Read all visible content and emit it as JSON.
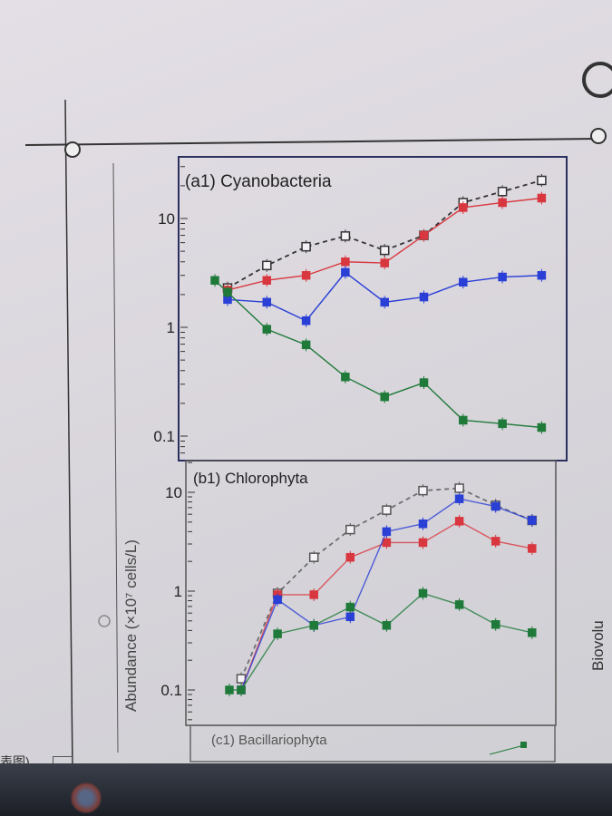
{
  "chart_data": [
    {
      "type": "line",
      "title": "(a1) Cyanobacteria",
      "yscale": "log",
      "ylim": [
        0.08,
        25
      ],
      "yticks": [
        {
          "value": 10,
          "label": "10"
        },
        {
          "value": 1,
          "label": "1"
        },
        {
          "value": 0.1,
          "label": "0.1"
        }
      ],
      "x": [
        0,
        1,
        2,
        3,
        4,
        5,
        6,
        7,
        8,
        9
      ],
      "series": [
        {
          "marker": "open-square",
          "line": "dashed",
          "color": "#333333",
          "values": [
            null,
            2.3,
            3.7,
            5.5,
            6.9,
            5.1,
            7.0,
            14,
            17.7,
            22.4
          ]
        },
        {
          "marker": "filled-square",
          "line": "solid",
          "color": "#d9373f",
          "values": [
            null,
            2.2,
            2.7,
            3.0,
            4.0,
            3.9,
            7.0,
            12.6,
            14,
            15.4
          ]
        },
        {
          "marker": "filled-square",
          "line": "solid",
          "color": "#2a3fd6",
          "values": [
            null,
            1.8,
            1.7,
            1.15,
            3.2,
            1.7,
            1.9,
            2.6,
            2.9,
            3.0
          ]
        },
        {
          "marker": "filled-square",
          "line": "solid",
          "color": "#1f7a3a",
          "values": [
            2.7,
            2.1,
            0.96,
            0.69,
            0.35,
            0.23,
            0.31,
            0.14,
            0.13,
            0.12
          ]
        }
      ]
    },
    {
      "type": "line",
      "title": "(b1) Chlorophyta",
      "yscale": "log",
      "ylim": [
        0.06,
        16
      ],
      "yticks": [
        {
          "value": 10,
          "label": "10"
        },
        {
          "value": 1,
          "label": "1"
        },
        {
          "value": 0.1,
          "label": "0.1"
        }
      ],
      "x": [
        0,
        1,
        2,
        3,
        4,
        5,
        6,
        7,
        8,
        9
      ],
      "series": [
        {
          "marker": "open-square",
          "line": "dashed",
          "color": "#555555",
          "values": [
            null,
            0.13,
            0.95,
            2.2,
            4.2,
            6.6,
            10.4,
            11,
            7.4,
            5.2
          ]
        },
        {
          "marker": "filled-square",
          "line": "solid",
          "color": "#d9373f",
          "values": [
            null,
            0.1,
            0.92,
            0.92,
            2.2,
            3.1,
            3.1,
            5.1,
            3.2,
            2.7
          ]
        },
        {
          "marker": "filled-square",
          "line": "solid",
          "color": "#2a3fd6",
          "values": [
            null,
            0.1,
            0.82,
            0.45,
            0.55,
            4.0,
            4.8,
            8.6,
            7.2,
            5.2
          ]
        },
        {
          "marker": "filled-square",
          "line": "solid",
          "color": "#1f7a3a",
          "values": [
            0.1,
            0.1,
            0.37,
            0.45,
            0.69,
            0.45,
            0.95,
            0.73,
            0.46,
            0.38
          ]
        }
      ]
    },
    {
      "type": "line",
      "title": "(c1) Bacillariophyta",
      "series": []
    }
  ],
  "ylabel": "Abundance (×10⁷ cells/L)",
  "side_text": "Biovolu"
}
